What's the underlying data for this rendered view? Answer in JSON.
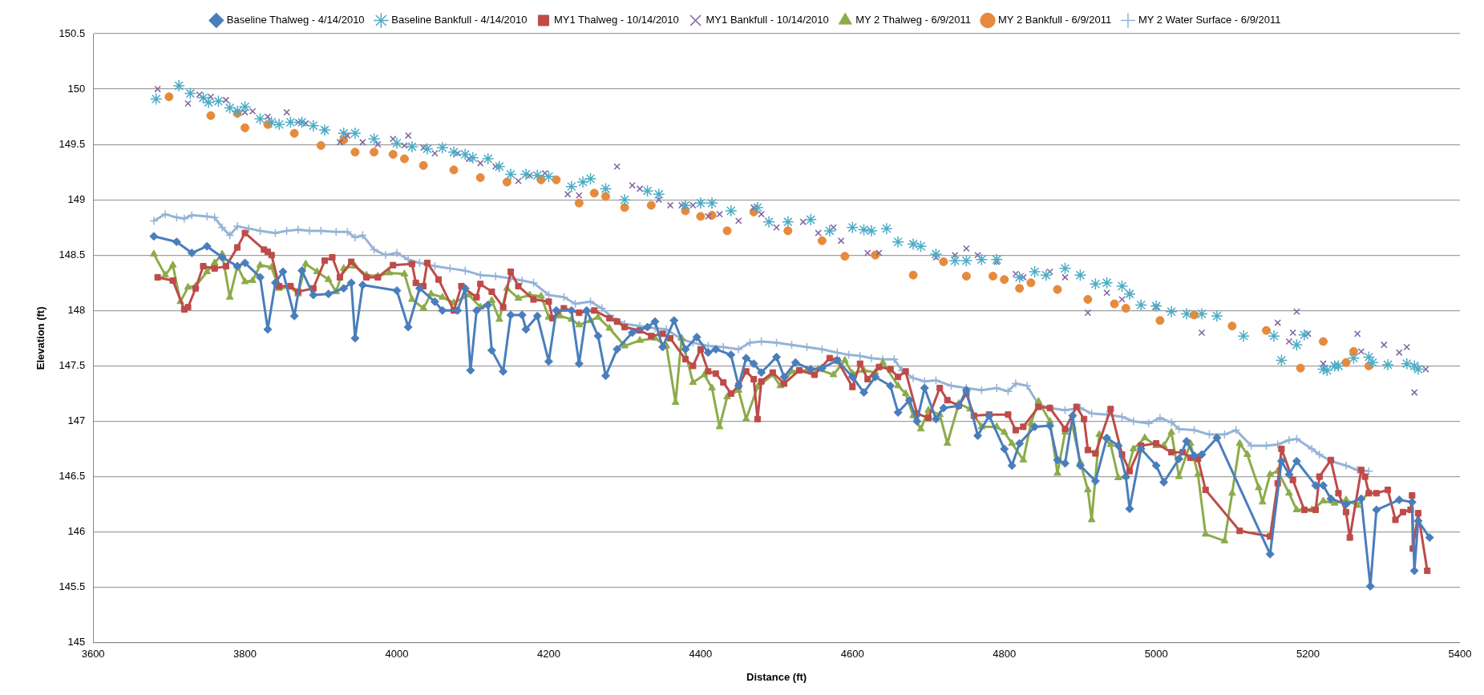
{
  "chart_data": {
    "type": "line",
    "xlabel": "Distance (ft)",
    "ylabel": "Elevation (ft)",
    "xlim": [
      3600,
      5400
    ],
    "xticks": [
      3600,
      3800,
      4000,
      4200,
      4400,
      4600,
      4800,
      5000,
      5200,
      5400
    ],
    "ylim": [
      145,
      150.5
    ],
    "yticks": [
      145,
      145.5,
      146,
      146.5,
      147,
      147.5,
      148,
      148.5,
      149,
      149.5,
      150,
      150.5
    ],
    "grid": "y",
    "legend": "top",
    "series": [
      {
        "name": "Baseline Thalweg - 4/14/2010",
        "type": "line",
        "marker": "diamond",
        "color": "#4a7ebb",
        "x": [
          3680,
          3710,
          3730,
          3750,
          3770,
          3790,
          3800,
          3820,
          3830,
          3840,
          3850,
          3865,
          3875,
          3890,
          3910,
          3930,
          3940,
          3945,
          3955,
          4000,
          4015,
          4030,
          4050,
          4060,
          4080,
          4090,
          4097,
          4105,
          4120,
          4125,
          4140,
          4150,
          4165,
          4170,
          4185,
          4200,
          4210,
          4230,
          4240,
          4250,
          4265,
          4275,
          4290,
          4310,
          4330,
          4340,
          4350,
          4365,
          4380,
          4395,
          4410,
          4420,
          4440,
          4450,
          4460,
          4470,
          4480,
          4500,
          4510,
          4525,
          4545,
          4560,
          4580,
          4600,
          4615,
          4630,
          4650,
          4660,
          4675,
          4685,
          4695,
          4710,
          4720,
          4740,
          4750,
          4765,
          4780,
          4800,
          4810,
          4820,
          4840,
          4860,
          4870,
          4880,
          4890,
          4900,
          4920,
          4935,
          4950,
          4960,
          4965,
          4980,
          5000,
          5010,
          5030,
          5040,
          5050,
          5060,
          5080,
          5150,
          5165,
          5175,
          5185,
          5210,
          5220,
          5230,
          5250,
          5270,
          5282,
          5290,
          5320,
          5337,
          5340,
          5345,
          5360
        ],
        "values": [
          148.67,
          148.62,
          148.52,
          148.58,
          148.48,
          148.4,
          148.43,
          148.3,
          147.83,
          148.25,
          148.35,
          147.95,
          148.36,
          148.14,
          148.15,
          148.2,
          148.25,
          147.75,
          148.23,
          148.18,
          147.85,
          148.2,
          148.08,
          148,
          148,
          148.2,
          147.46,
          148,
          148.05,
          147.64,
          147.45,
          147.96,
          147.96,
          147.83,
          147.95,
          147.54,
          148,
          148,
          147.52,
          148,
          147.77,
          147.41,
          147.65,
          147.8,
          147.85,
          147.9,
          147.67,
          147.91,
          147.65,
          147.76,
          147.62,
          147.65,
          147.6,
          147.32,
          147.57,
          147.52,
          147.44,
          147.58,
          147.4,
          147.53,
          147.47,
          147.48,
          147.55,
          147.4,
          147.26,
          147.4,
          147.32,
          147.08,
          147.19,
          147,
          147.3,
          147.02,
          147.12,
          147.14,
          147.28,
          146.87,
          147.05,
          146.75,
          146.6,
          146.8,
          146.95,
          146.96,
          146.65,
          146.62,
          147.05,
          146.6,
          146.46,
          146.85,
          146.78,
          146.5,
          146.21,
          146.75,
          146.6,
          146.45,
          146.66,
          146.82,
          146.69,
          146.7,
          146.85,
          145.8,
          146.64,
          146.52,
          146.64,
          146.42,
          146.42,
          146.3,
          146.25,
          146.3,
          145.51,
          146.2,
          146.29,
          146.27,
          145.65,
          146.1,
          145.95
        ]
      },
      {
        "name": "Baseline Bankfull - 4/14/2010",
        "type": "scatter",
        "marker": "cross",
        "color": "#4bacc6",
        "x": [
          3683,
          3713,
          3728,
          3745,
          3752,
          3765,
          3780,
          3790,
          3800,
          3820,
          3835,
          3845,
          3860,
          3875,
          3890,
          3905,
          3930,
          3945,
          3970,
          4000,
          4020,
          4040,
          4060,
          4075,
          4090,
          4100,
          4120,
          4135,
          4150,
          4170,
          4185,
          4200,
          4230,
          4245,
          4255,
          4275,
          4300,
          4330,
          4345,
          4380,
          4400,
          4415,
          4440,
          4475,
          4490,
          4515,
          4545,
          4570,
          4600,
          4615,
          4625,
          4645,
          4660,
          4680,
          4690,
          4710,
          4735,
          4750,
          4770,
          4790,
          4820,
          4840,
          4855,
          4880,
          4900,
          4920,
          4935,
          4955,
          4965,
          4980,
          5000,
          5020,
          5040,
          5060,
          5080,
          5115,
          5155,
          5165,
          5185,
          5195,
          5220,
          5225,
          5235,
          5240,
          5260,
          5280,
          5285,
          5305,
          5330,
          5340,
          5345
        ],
        "values": [
          149.91,
          150.03,
          149.96,
          149.92,
          149.88,
          149.89,
          149.83,
          149.8,
          149.84,
          149.73,
          149.7,
          149.68,
          149.7,
          149.7,
          149.67,
          149.63,
          149.6,
          149.6,
          149.55,
          149.51,
          149.48,
          149.46,
          149.47,
          149.43,
          149.41,
          149.38,
          149.37,
          149.3,
          149.23,
          149.23,
          149.22,
          149.21,
          149.12,
          149.16,
          149.19,
          149.1,
          149,
          149.08,
          149.05,
          148.95,
          148.97,
          148.97,
          148.9,
          148.93,
          148.8,
          148.8,
          148.82,
          148.72,
          148.75,
          148.73,
          148.72,
          148.74,
          148.62,
          148.6,
          148.58,
          148.51,
          148.45,
          148.45,
          148.46,
          148.46,
          148.3,
          148.35,
          148.32,
          148.38,
          148.32,
          148.24,
          148.25,
          148.22,
          148.15,
          148.05,
          148.04,
          147.99,
          147.97,
          147.97,
          147.95,
          147.77,
          147.77,
          147.55,
          147.69,
          147.78,
          147.47,
          147.46,
          147.5,
          147.5,
          147.57,
          147.58,
          147.53,
          147.51,
          147.52,
          147.5,
          147.47
        ]
      },
      {
        "name": "MY1 Thalweg - 10/14/2010",
        "type": "line",
        "marker": "square",
        "color": "#be4b48",
        "x": [
          3685,
          3705,
          3720,
          3725,
          3735,
          3745,
          3760,
          3775,
          3790,
          3800,
          3825,
          3830,
          3835,
          3845,
          3860,
          3870,
          3890,
          3905,
          3915,
          3925,
          3940,
          3960,
          3975,
          3995,
          4020,
          4025,
          4035,
          4040,
          4055,
          4075,
          4085,
          4105,
          4110,
          4125,
          4140,
          4150,
          4160,
          4180,
          4200,
          4205,
          4220,
          4240,
          4260,
          4280,
          4290,
          4300,
          4320,
          4335,
          4350,
          4360,
          4380,
          4390,
          4400,
          4410,
          4420,
          4430,
          4440,
          4450,
          4460,
          4470,
          4475,
          4480,
          4495,
          4510,
          4530,
          4550,
          4570,
          4580,
          4600,
          4610,
          4620,
          4635,
          4650,
          4660,
          4670,
          4685,
          4700,
          4715,
          4725,
          4740,
          4750,
          4760,
          4780,
          4805,
          4815,
          4825,
          4845,
          4860,
          4880,
          4895,
          4905,
          4910,
          4920,
          4940,
          4955,
          4965,
          4980,
          5000,
          5020,
          5035,
          5045,
          5055,
          5065,
          5110,
          5150,
          5160,
          5165,
          5180,
          5195,
          5210,
          5215,
          5230,
          5240,
          5250,
          5255,
          5270,
          5275,
          5280,
          5290,
          5305,
          5315,
          5325,
          5335,
          5337,
          5338,
          5345,
          5357
        ],
        "values": [
          148.3,
          148.27,
          148.01,
          148.03,
          148.2,
          148.4,
          148.38,
          148.4,
          148.57,
          148.7,
          148.55,
          148.53,
          148.5,
          148.22,
          148.22,
          148.17,
          148.2,
          148.45,
          148.48,
          148.3,
          148.44,
          148.3,
          148.3,
          148.41,
          148.42,
          148.25,
          148.22,
          148.43,
          148.28,
          148,
          148.22,
          148.12,
          148.24,
          148.17,
          148.03,
          148.35,
          148.22,
          148.1,
          148.08,
          147.93,
          148.02,
          147.98,
          148,
          147.93,
          147.9,
          147.85,
          147.82,
          147.77,
          147.79,
          147.75,
          147.56,
          147.5,
          147.65,
          147.45,
          147.43,
          147.35,
          147.25,
          147.32,
          147.45,
          147.38,
          147.02,
          147.36,
          147.44,
          147.34,
          147.46,
          147.42,
          147.57,
          147.55,
          147.31,
          147.52,
          147.38,
          147.49,
          147.47,
          147.4,
          147.45,
          147.07,
          147.03,
          147.3,
          147.19,
          147.14,
          147.25,
          147.05,
          147.06,
          147.06,
          146.92,
          146.95,
          147.13,
          147.12,
          146.93,
          147.13,
          147.02,
          146.74,
          146.71,
          147.11,
          146.7,
          146.55,
          146.78,
          146.8,
          146.72,
          146.72,
          146.67,
          146.66,
          146.38,
          146.01,
          145.96,
          146.44,
          146.75,
          146.47,
          146.2,
          146.2,
          146.5,
          146.65,
          146.35,
          146.18,
          145.95,
          146.56,
          146.5,
          146.35,
          146.35,
          146.38,
          146.11,
          146.18,
          146.2,
          146.33,
          145.85,
          146.17,
          145.65
        ]
      },
      {
        "name": "MY1 Bankfull - 10/14/2010",
        "type": "scatter",
        "marker": "cross",
        "color": "#7e62a1",
        "x": [
          3685,
          3725,
          3740,
          3755,
          3775,
          3800,
          3810,
          3830,
          3855,
          3870,
          3880,
          3905,
          3925,
          3935,
          3955,
          3975,
          3995,
          4010,
          4015,
          4035,
          4050,
          4080,
          4095,
          4110,
          4130,
          4160,
          4175,
          4195,
          4225,
          4240,
          4290,
          4310,
          4320,
          4345,
          4360,
          4375,
          4390,
          4410,
          4425,
          4450,
          4470,
          4480,
          4500,
          4535,
          4555,
          4575,
          4585,
          4620,
          4635,
          4680,
          4710,
          4735,
          4750,
          4765,
          4790,
          4815,
          4825,
          4860,
          4880,
          4910,
          4935,
          4955,
          4965,
          5000,
          5060,
          5160,
          5175,
          5180,
          5185,
          5200,
          5220,
          5235,
          5265,
          5270,
          5300,
          5320,
          5330,
          5340,
          5355
        ],
        "values": [
          150,
          149.87,
          149.95,
          149.93,
          149.9,
          149.79,
          149.8,
          149.75,
          149.79,
          149.7,
          149.69,
          149.63,
          149.52,
          149.58,
          149.52,
          149.5,
          149.55,
          149.49,
          149.58,
          149.47,
          149.42,
          149.42,
          149.37,
          149.33,
          149.3,
          149.17,
          149.22,
          149.24,
          149.05,
          149.04,
          149.3,
          149.13,
          149.1,
          149,
          148.95,
          148.95,
          148.95,
          148.85,
          148.87,
          148.81,
          148.93,
          148.87,
          148.75,
          148.8,
          148.7,
          148.75,
          148.63,
          148.52,
          148.52,
          148.6,
          148.48,
          148.5,
          148.56,
          148.5,
          148.44,
          148.33,
          148.3,
          148.35,
          148.3,
          147.98,
          148.16,
          148.1,
          148.15,
          148.03,
          147.8,
          147.89,
          147.72,
          147.8,
          147.99,
          147.79,
          147.52,
          147.5,
          147.79,
          147.63,
          147.69,
          147.62,
          147.67,
          147.26,
          147.47
        ]
      },
      {
        "name": "MY 2 Thalweg - 6/9/2011",
        "type": "line",
        "marker": "triangle",
        "color": "#8cab4a",
        "x": [
          3680,
          3695,
          3705,
          3715,
          3725,
          3735,
          3750,
          3760,
          3770,
          3780,
          3790,
          3800,
          3810,
          3820,
          3835,
          3845,
          3860,
          3870,
          3880,
          3895,
          3910,
          3920,
          3930,
          3945,
          3960,
          3975,
          3990,
          4010,
          4020,
          4035,
          4045,
          4060,
          4075,
          4095,
          4110,
          4125,
          4135,
          4145,
          4160,
          4175,
          4190,
          4200,
          4215,
          4230,
          4240,
          4255,
          4265,
          4280,
          4300,
          4320,
          4340,
          4355,
          4367,
          4375,
          4390,
          4405,
          4415,
          4425,
          4435,
          4450,
          4460,
          4475,
          4495,
          4505,
          4520,
          4540,
          4555,
          4575,
          4590,
          4600,
          4615,
          4630,
          4640,
          4660,
          4670,
          4680,
          4690,
          4700,
          4715,
          4725,
          4740,
          4755,
          4770,
          4790,
          4800,
          4810,
          4825,
          4835,
          4845,
          4860,
          4870,
          4880,
          4890,
          4900,
          4910,
          4915,
          4925,
          4940,
          4950,
          4960,
          4970,
          4985,
          5000,
          5010,
          5020,
          5030,
          5045,
          5055,
          5065,
          5090,
          5100,
          5110,
          5120,
          5135,
          5140,
          5150,
          5160,
          5175,
          5185,
          5205,
          5220,
          5235,
          5250,
          5265,
          5280
        ],
        "values": [
          148.51,
          148.32,
          148.41,
          148.08,
          148.21,
          148.22,
          148.35,
          148.43,
          148.51,
          148.12,
          148.4,
          148.26,
          148.27,
          148.41,
          148.39,
          148.2,
          148.21,
          148.15,
          148.42,
          148.35,
          148.28,
          148.17,
          148.38,
          148.4,
          148.32,
          148.31,
          148.34,
          148.33,
          148.1,
          148.02,
          148.15,
          148.12,
          148.07,
          148.14,
          148.03,
          148.09,
          147.92,
          148.2,
          148.11,
          148.14,
          148.13,
          147.94,
          147.95,
          147.92,
          147.87,
          147.91,
          147.94,
          147.84,
          147.68,
          147.73,
          147.75,
          147.68,
          147.17,
          147.75,
          147.35,
          147.42,
          147.3,
          146.95,
          147.22,
          147.28,
          147.02,
          147.31,
          147.42,
          147.32,
          147.45,
          147.46,
          147.47,
          147.42,
          147.55,
          147.43,
          147.46,
          147.44,
          147.53,
          147.32,
          147.25,
          147.05,
          146.93,
          147.1,
          147.06,
          146.8,
          147.16,
          147.11,
          146.95,
          146.95,
          146.9,
          146.8,
          146.65,
          146.98,
          147.18,
          147,
          146.53,
          146.9,
          146.95,
          146.63,
          146.38,
          146.11,
          146.88,
          146.79,
          146.49,
          146.5,
          146.75,
          146.85,
          146.78,
          146.78,
          146.9,
          146.5,
          146.8,
          146.52,
          145.98,
          145.92,
          146.35,
          146.8,
          146.7,
          146.4,
          146.27,
          146.52,
          146.55,
          146.35,
          146.2,
          146.2,
          146.28,
          146.26,
          146.29,
          146.24,
          146.36
        ]
      },
      {
        "name": "MY 2 Bankfull - 6/9/2011",
        "type": "scatter",
        "marker": "circle",
        "color": "#e68a3c",
        "x": [
          3700,
          3755,
          3790,
          3800,
          3830,
          3865,
          3900,
          3930,
          3945,
          3970,
          3995,
          4010,
          4035,
          4075,
          4110,
          4145,
          4190,
          4210,
          4240,
          4260,
          4275,
          4300,
          4335,
          4380,
          4400,
          4415,
          4435,
          4470,
          4515,
          4560,
          4590,
          4630,
          4680,
          4720,
          4750,
          4785,
          4800,
          4820,
          4835,
          4870,
          4910,
          4945,
          4960,
          5005,
          5050,
          5100,
          5145,
          5190,
          5220,
          5250,
          5260,
          5280
        ],
        "values": [
          149.93,
          149.76,
          149.78,
          149.65,
          149.68,
          149.6,
          149.49,
          149.54,
          149.43,
          149.43,
          149.41,
          149.37,
          149.31,
          149.27,
          149.2,
          149.16,
          149.18,
          149.18,
          148.97,
          149.06,
          149.03,
          148.93,
          148.95,
          148.9,
          148.85,
          148.86,
          148.72,
          148.89,
          148.72,
          148.63,
          148.49,
          148.5,
          148.32,
          148.44,
          148.31,
          148.31,
          148.28,
          148.2,
          148.25,
          148.19,
          148.1,
          148.06,
          148.02,
          147.91,
          147.96,
          147.86,
          147.82,
          147.48,
          147.72,
          147.53,
          147.63,
          147.5
        ]
      },
      {
        "name": "MY 2 Water Surface - 6/9/2011",
        "type": "line",
        "marker": "cross",
        "color": "#95b3d7",
        "x": [
          3680,
          3695,
          3710,
          3720,
          3730,
          3750,
          3760,
          3770,
          3780,
          3790,
          3805,
          3820,
          3840,
          3855,
          3870,
          3885,
          3900,
          3920,
          3935,
          3945,
          3955,
          3970,
          3985,
          4000,
          4015,
          4030,
          4050,
          4070,
          4090,
          4110,
          4130,
          4150,
          4165,
          4180,
          4200,
          4220,
          4235,
          4255,
          4270,
          4285,
          4300,
          4320,
          4340,
          4355,
          4375,
          4390,
          4410,
          4430,
          4450,
          4465,
          4480,
          4500,
          4520,
          4540,
          4560,
          4580,
          4595,
          4610,
          4625,
          4640,
          4655,
          4665,
          4680,
          4695,
          4710,
          4730,
          4750,
          4770,
          4790,
          4805,
          4815,
          4830,
          4845,
          4860,
          4880,
          4900,
          4915,
          4935,
          4955,
          4970,
          4990,
          5005,
          5020,
          5030,
          5050,
          5070,
          5090,
          5105,
          5125,
          5145,
          5160,
          5175,
          5185,
          5205,
          5215,
          5230,
          5250,
          5265,
          5280
        ],
        "values": [
          148.81,
          148.87,
          148.84,
          148.83,
          148.86,
          148.85,
          148.84,
          148.75,
          148.68,
          148.76,
          148.74,
          148.72,
          148.7,
          148.72,
          148.73,
          148.72,
          148.72,
          148.71,
          148.71,
          148.66,
          148.68,
          148.55,
          148.5,
          148.52,
          148.46,
          148.43,
          148.4,
          148.38,
          148.36,
          148.32,
          148.31,
          148.29,
          148.27,
          148.25,
          148.14,
          148.12,
          148.06,
          148.08,
          148.02,
          147.93,
          147.88,
          147.86,
          147.84,
          147.83,
          147.74,
          147.71,
          147.68,
          147.67,
          147.65,
          147.71,
          147.72,
          147.71,
          147.69,
          147.67,
          147.65,
          147.62,
          147.6,
          147.59,
          147.57,
          147.56,
          147.56,
          147.46,
          147.39,
          147.36,
          147.37,
          147.32,
          147.3,
          147.28,
          147.3,
          147.27,
          147.34,
          147.32,
          147.15,
          147.12,
          147.1,
          147.12,
          147.07,
          147.06,
          147.04,
          147,
          146.98,
          147.03,
          146.99,
          146.93,
          146.92,
          146.88,
          146.88,
          146.92,
          146.78,
          146.78,
          146.79,
          146.83,
          146.84,
          146.75,
          146.7,
          146.64,
          146.6,
          146.56,
          146.55
        ]
      }
    ]
  }
}
